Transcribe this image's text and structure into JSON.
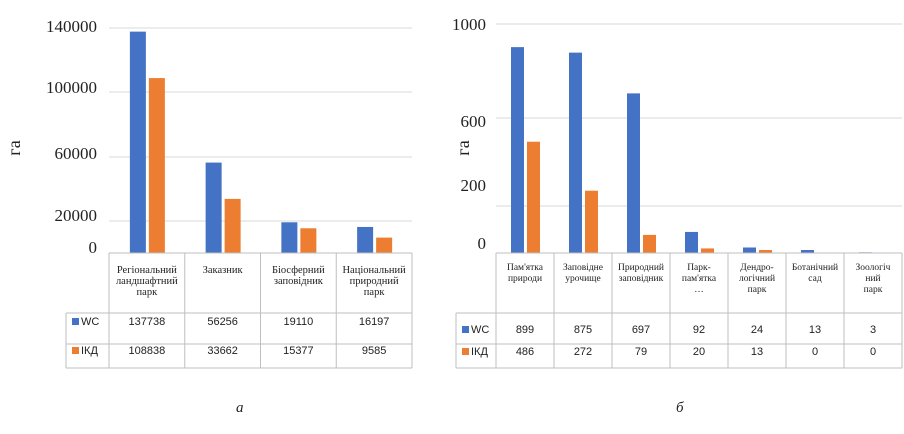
{
  "colors": {
    "wc": "#4472C4",
    "ikd": "#ED7D31",
    "grid": "#D9D9D9",
    "table": "#BFBFBF"
  },
  "chart_data": [
    {
      "type": "bar",
      "caption": "а",
      "ylabel": "га",
      "ylim": [
        0,
        140000
      ],
      "yticks": [
        0,
        20000,
        60000,
        100000,
        140000
      ],
      "grid": true,
      "legend": "data-table",
      "categories": [
        [
          "Регіональний",
          "ландшафтний",
          "парк"
        ],
        [
          "Заказник"
        ],
        [
          "Біосферний",
          "заповідник"
        ],
        [
          "Національний",
          "природний",
          "парк"
        ]
      ],
      "series": [
        {
          "name": "WC",
          "values": [
            137738,
            56256,
            19110,
            16197
          ]
        },
        {
          "name": "ІКД",
          "values": [
            108838,
            33662,
            15377,
            9585
          ]
        }
      ]
    },
    {
      "type": "bar",
      "caption": "б",
      "ylabel": "га",
      "ylim": [
        0,
        1000
      ],
      "yticks": [
        0,
        200,
        600,
        1000
      ],
      "grid": true,
      "legend": "data-table",
      "categories": [
        [
          "Пам'ятка",
          "природи"
        ],
        [
          "Заповідне",
          "урочище"
        ],
        [
          "Природний",
          "заповідник"
        ],
        [
          "Парк-",
          "пам'ятка",
          "…"
        ],
        [
          "Дендро-",
          "логічний",
          "парк"
        ],
        [
          "Ботанічний",
          "сад"
        ],
        [
          "Зоологіч",
          "ний",
          "парк"
        ]
      ],
      "series": [
        {
          "name": "WC",
          "values": [
            899,
            875,
            697,
            92,
            24,
            13,
            3
          ]
        },
        {
          "name": "ІКД",
          "values": [
            486,
            272,
            79,
            20,
            13,
            0,
            0
          ]
        }
      ]
    }
  ]
}
